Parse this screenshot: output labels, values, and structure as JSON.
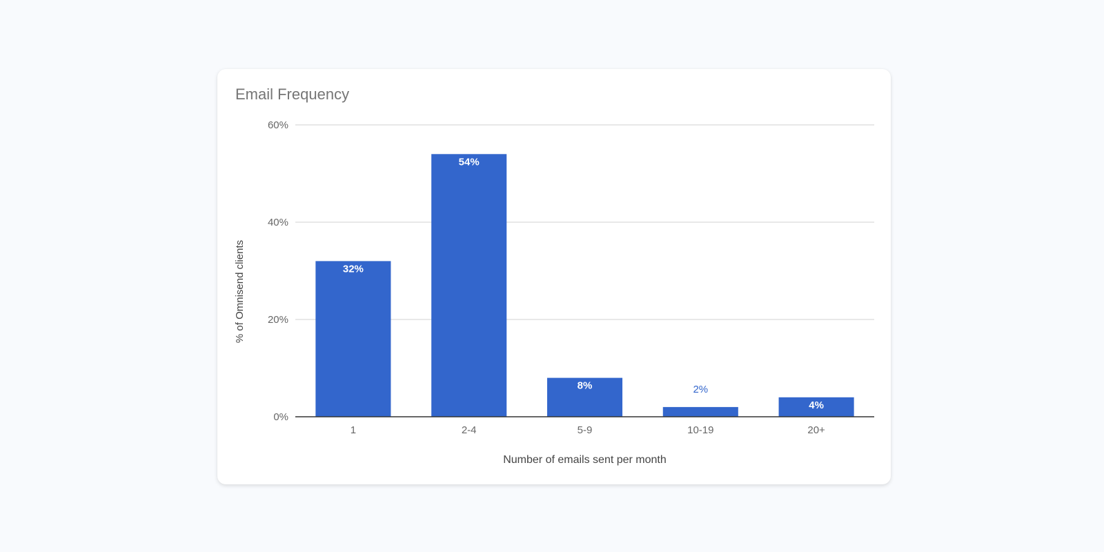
{
  "chart_data": {
    "type": "bar",
    "title": "Email Frequency",
    "xlabel": "Number of emails sent per month",
    "ylabel": "% of Omnisend clients",
    "categories": [
      "1",
      "2-4",
      "5-9",
      "10-19",
      "20+"
    ],
    "values": [
      32,
      54,
      8,
      2,
      4
    ],
    "value_labels": [
      "32%",
      "54%",
      "8%",
      "2%",
      "4%"
    ],
    "ylim": [
      0,
      60
    ],
    "yticks": [
      0,
      20,
      40,
      60
    ],
    "ytick_labels": [
      "0%",
      "20%",
      "40%",
      "60%"
    ],
    "grid": true,
    "legend": "none",
    "colors": {
      "bar": "#3366cc",
      "label_inside": "#ffffff",
      "label_outside": "#3366cc",
      "grid": "#d9d9d9",
      "axis": "#333333",
      "tick_text": "#666666"
    }
  }
}
